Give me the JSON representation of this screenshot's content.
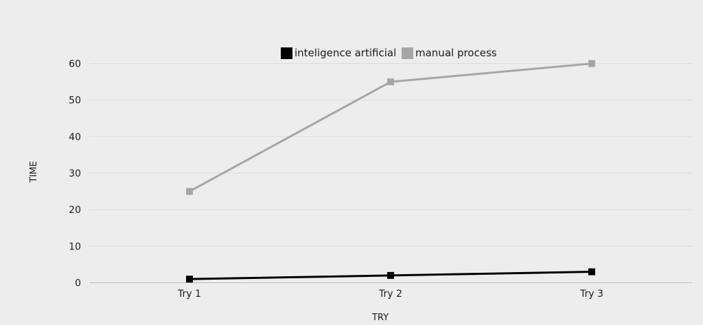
{
  "chart_data": {
    "type": "line",
    "title": "",
    "xlabel": "TRY",
    "ylabel": "TIME",
    "categories": [
      "Try 1",
      "Try 2",
      "Try 3"
    ],
    "series": [
      {
        "name": "inteligence artificial",
        "values": [
          1,
          2,
          3
        ],
        "color": "#000000"
      },
      {
        "name": "manual process",
        "values": [
          25,
          55,
          60
        ],
        "color": "#a6a6a6"
      }
    ],
    "ylim": [
      0,
      60
    ],
    "yticks": [
      "0",
      "10",
      "20",
      "30",
      "40",
      "50",
      "60"
    ],
    "grid": true,
    "legend_position": "top"
  }
}
